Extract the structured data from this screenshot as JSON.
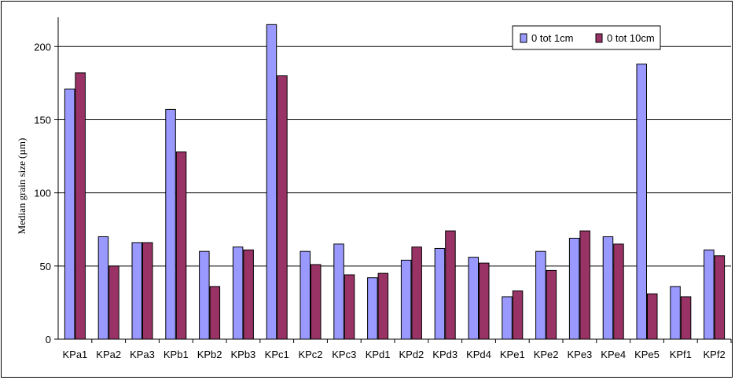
{
  "chart_data": {
    "type": "bar",
    "title": "",
    "xlabel": "",
    "ylabel": "Median grain size (µm)",
    "ylim": [
      0,
      220
    ],
    "yticks": [
      0,
      50,
      100,
      150,
      200
    ],
    "grid": true,
    "legend_position": "top-right",
    "categories": [
      "KPa1",
      "KPa2",
      "KPa3",
      "KPb1",
      "KPb2",
      "KPb3",
      "KPc1",
      "KPc2",
      "KPc3",
      "KPd1",
      "KPd2",
      "KPd3",
      "KPd4",
      "KPe1",
      "KPe2",
      "KPe3",
      "KPe4",
      "KPe5",
      "KPf1",
      "KPf2"
    ],
    "series": [
      {
        "name": "0 tot 1cm",
        "color": "#9999ff",
        "values": [
          171,
          70,
          66,
          157,
          60,
          63,
          215,
          60,
          65,
          42,
          54,
          62,
          56,
          29,
          60,
          69,
          70,
          188,
          36,
          61
        ]
      },
      {
        "name": "0 tot 10cm",
        "color": "#993366",
        "values": [
          182,
          50,
          66,
          128,
          36,
          61,
          180,
          51,
          44,
          45,
          63,
          74,
          52,
          33,
          47,
          74,
          65,
          31,
          29,
          57
        ]
      }
    ]
  }
}
